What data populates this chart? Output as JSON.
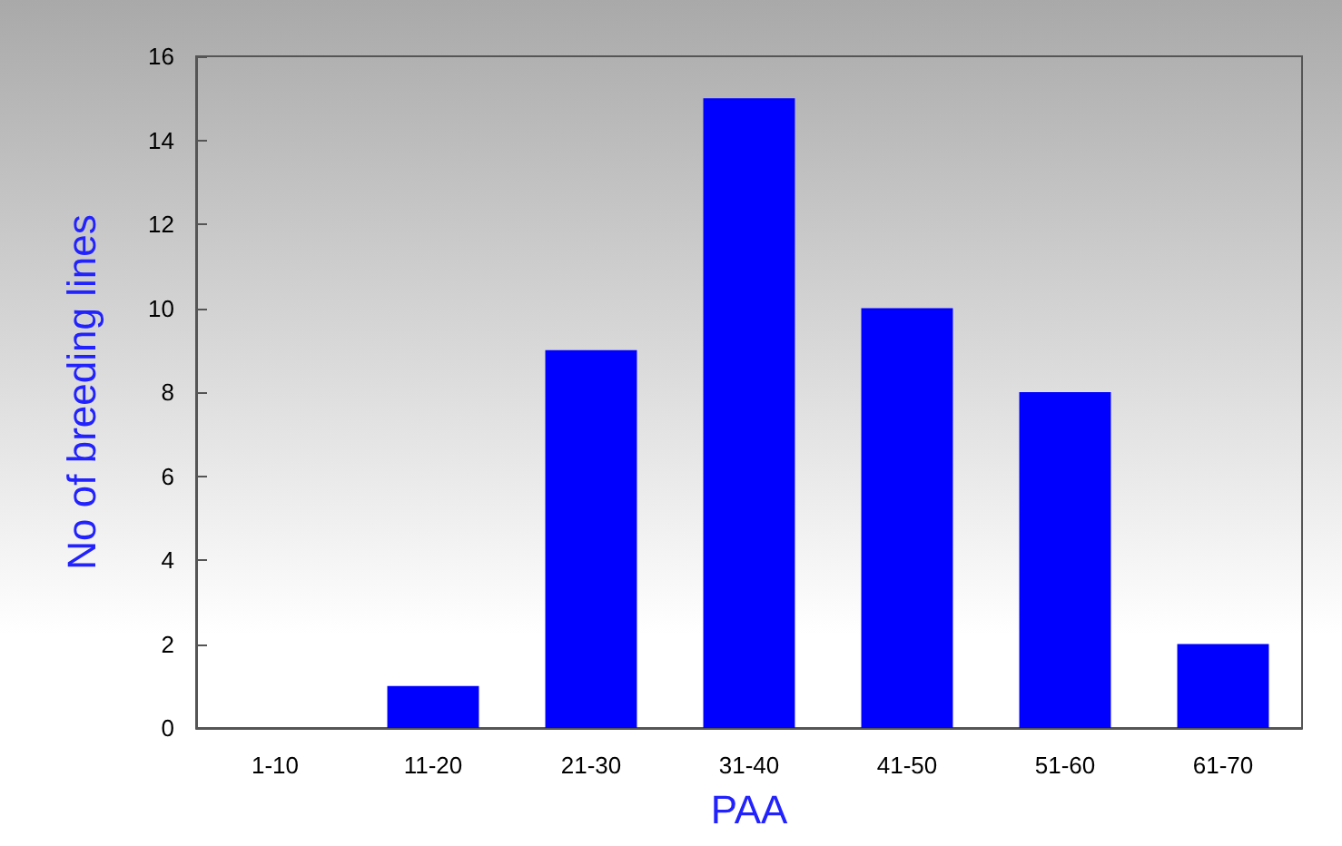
{
  "chart_data": {
    "type": "bar",
    "xlabel": "PAA",
    "ylabel": "No of breeding lines",
    "categories": [
      "1-10",
      "11-20",
      "21-30",
      "31-40",
      "41-50",
      "51-60",
      "61-70"
    ],
    "values": [
      0,
      1,
      9,
      15,
      10,
      8,
      2
    ],
    "color": "#0000ff",
    "ylim": [
      0,
      16
    ],
    "yticks": [
      0,
      2,
      4,
      6,
      8,
      10,
      12,
      14,
      16
    ],
    "grid": false
  }
}
